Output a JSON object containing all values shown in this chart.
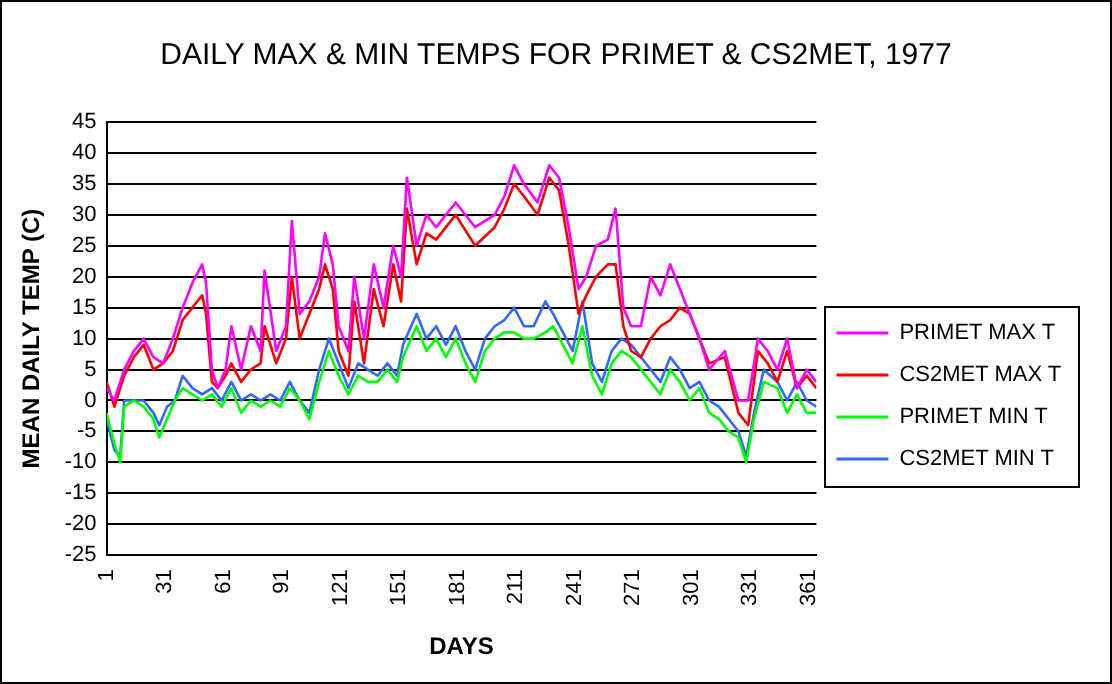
{
  "chart_data": {
    "type": "line",
    "title": "DAILY MAX & MIN TEMPS FOR PRIMET & CS2MET, 1977",
    "xlabel": "DAYS",
    "ylabel": "MEAN DAILY TEMP (C)",
    "xlim": [
      1,
      365
    ],
    "xticks": [
      1,
      31,
      61,
      91,
      121,
      151,
      181,
      211,
      241,
      271,
      301,
      331,
      361
    ],
    "ylim": [
      -25,
      45
    ],
    "yticks": [
      -25,
      -20,
      -15,
      -10,
      -5,
      0,
      5,
      10,
      15,
      20,
      25,
      30,
      35,
      40,
      45
    ],
    "grid": "y",
    "legend": "right",
    "marker": "none",
    "series": [
      {
        "name": "PRIMET MAX T",
        "color": "#ff00ff",
        "x": [
          1,
          5,
          10,
          15,
          20,
          25,
          30,
          35,
          40,
          45,
          50,
          52,
          55,
          58,
          62,
          65,
          70,
          75,
          80,
          82,
          88,
          93,
          96,
          100,
          105,
          110,
          113,
          117,
          120,
          125,
          128,
          133,
          138,
          143,
          148,
          152,
          155,
          160,
          165,
          170,
          180,
          190,
          200,
          205,
          210,
          215,
          222,
          228,
          233,
          238,
          243,
          247,
          252,
          258,
          262,
          266,
          270,
          275,
          280,
          285,
          290,
          295,
          300,
          305,
          310,
          318,
          325,
          330,
          335,
          340,
          345,
          350,
          355,
          360,
          365
        ],
        "values": [
          2,
          0,
          5,
          8,
          10,
          7,
          6,
          10,
          15,
          19,
          22,
          19,
          5,
          2,
          5,
          12,
          5,
          12,
          8,
          21,
          8,
          12,
          29,
          14,
          16,
          20,
          27,
          22,
          12,
          8,
          20,
          10,
          22,
          15,
          25,
          20,
          36,
          25,
          30,
          28,
          32,
          28,
          30,
          33,
          38,
          35,
          32,
          38,
          36,
          28,
          18,
          20,
          25,
          26,
          31,
          15,
          12,
          12,
          20,
          17,
          22,
          18,
          14,
          10,
          5,
          8,
          0,
          0,
          10,
          8,
          5,
          10,
          2,
          5,
          3
        ]
      },
      {
        "name": "CS2MET MAX T",
        "color": "#ff0000",
        "x": [
          1,
          5,
          10,
          15,
          20,
          25,
          30,
          35,
          40,
          45,
          50,
          52,
          55,
          58,
          62,
          65,
          70,
          75,
          80,
          82,
          88,
          93,
          96,
          100,
          105,
          110,
          113,
          117,
          120,
          125,
          128,
          133,
          138,
          143,
          148,
          152,
          155,
          160,
          165,
          170,
          180,
          190,
          200,
          205,
          210,
          215,
          222,
          228,
          233,
          238,
          243,
          247,
          252,
          258,
          262,
          266,
          270,
          275,
          280,
          285,
          290,
          295,
          300,
          305,
          310,
          318,
          325,
          330,
          335,
          340,
          345,
          350,
          355,
          360,
          365
        ],
        "values": [
          3,
          -1,
          4,
          7,
          9,
          5,
          6,
          8,
          13,
          15,
          17,
          14,
          3,
          2,
          4,
          6,
          3,
          5,
          6,
          12,
          6,
          10,
          20,
          10,
          14,
          18,
          22,
          18,
          8,
          4,
          16,
          6,
          18,
          12,
          22,
          16,
          31,
          22,
          27,
          26,
          30,
          25,
          28,
          31,
          35,
          33,
          30,
          36,
          34,
          25,
          14,
          17,
          20,
          22,
          22,
          12,
          8,
          7,
          10,
          12,
          13,
          15,
          14,
          10,
          6,
          7,
          -2,
          -4,
          8,
          6,
          3,
          8,
          2,
          4,
          2
        ]
      },
      {
        "name": "PRIMET MIN T",
        "color": "#00ff00",
        "x": [
          1,
          5,
          8,
          10,
          15,
          20,
          25,
          28,
          32,
          36,
          40,
          45,
          50,
          55,
          60,
          65,
          70,
          75,
          80,
          85,
          90,
          95,
          100,
          105,
          110,
          115,
          120,
          125,
          130,
          135,
          140,
          145,
          150,
          153,
          160,
          165,
          170,
          175,
          180,
          185,
          190,
          195,
          200,
          205,
          210,
          215,
          220,
          226,
          230,
          235,
          240,
          245,
          250,
          255,
          260,
          265,
          270,
          275,
          280,
          285,
          290,
          295,
          300,
          305,
          310,
          315,
          320,
          325,
          329,
          333,
          338,
          345,
          350,
          355,
          360,
          365
        ],
        "values": [
          -2,
          -7,
          -10,
          -1,
          0,
          -1,
          -3,
          -6,
          -3,
          0,
          2,
          1,
          0,
          1,
          -1,
          2,
          -2,
          0,
          -1,
          0,
          -1,
          2,
          0,
          -3,
          3,
          8,
          4,
          1,
          4,
          3,
          3,
          5,
          3,
          7,
          12,
          8,
          10,
          7,
          10,
          6,
          3,
          8,
          10,
          11,
          11,
          10,
          10,
          11,
          12,
          9,
          6,
          12,
          4,
          1,
          6,
          8,
          7,
          5,
          3,
          1,
          5,
          3,
          0,
          2,
          -2,
          -3,
          -5,
          -6,
          -10,
          -3,
          3,
          2,
          -2,
          1,
          -2,
          -2
        ]
      },
      {
        "name": "CS2MET MIN T",
        "color": "#3366ff",
        "x": [
          1,
          5,
          8,
          10,
          15,
          20,
          25,
          28,
          32,
          36,
          40,
          45,
          50,
          55,
          60,
          65,
          70,
          75,
          80,
          85,
          90,
          95,
          100,
          105,
          110,
          115,
          120,
          125,
          130,
          135,
          140,
          145,
          150,
          153,
          160,
          165,
          170,
          175,
          180,
          185,
          190,
          195,
          200,
          205,
          210,
          215,
          220,
          226,
          230,
          235,
          240,
          245,
          250,
          255,
          260,
          265,
          270,
          275,
          280,
          285,
          290,
          295,
          300,
          305,
          310,
          315,
          320,
          325,
          329,
          333,
          338,
          345,
          350,
          355,
          360,
          365
        ],
        "values": [
          -3,
          -8,
          -9,
          0,
          0,
          0,
          -2,
          -4,
          -1,
          0,
          4,
          2,
          1,
          2,
          0,
          3,
          0,
          1,
          0,
          1,
          0,
          3,
          0,
          -2,
          5,
          10,
          6,
          2,
          6,
          5,
          4,
          6,
          4,
          9,
          14,
          10,
          12,
          9,
          12,
          8,
          5,
          10,
          12,
          13,
          15,
          12,
          12,
          16,
          14,
          11,
          8,
          16,
          6,
          3,
          8,
          10,
          9,
          7,
          5,
          3,
          7,
          5,
          2,
          3,
          0,
          -1,
          -3,
          -5,
          -9,
          -2,
          5,
          3,
          0,
          3,
          0,
          -1
        ]
      }
    ]
  }
}
